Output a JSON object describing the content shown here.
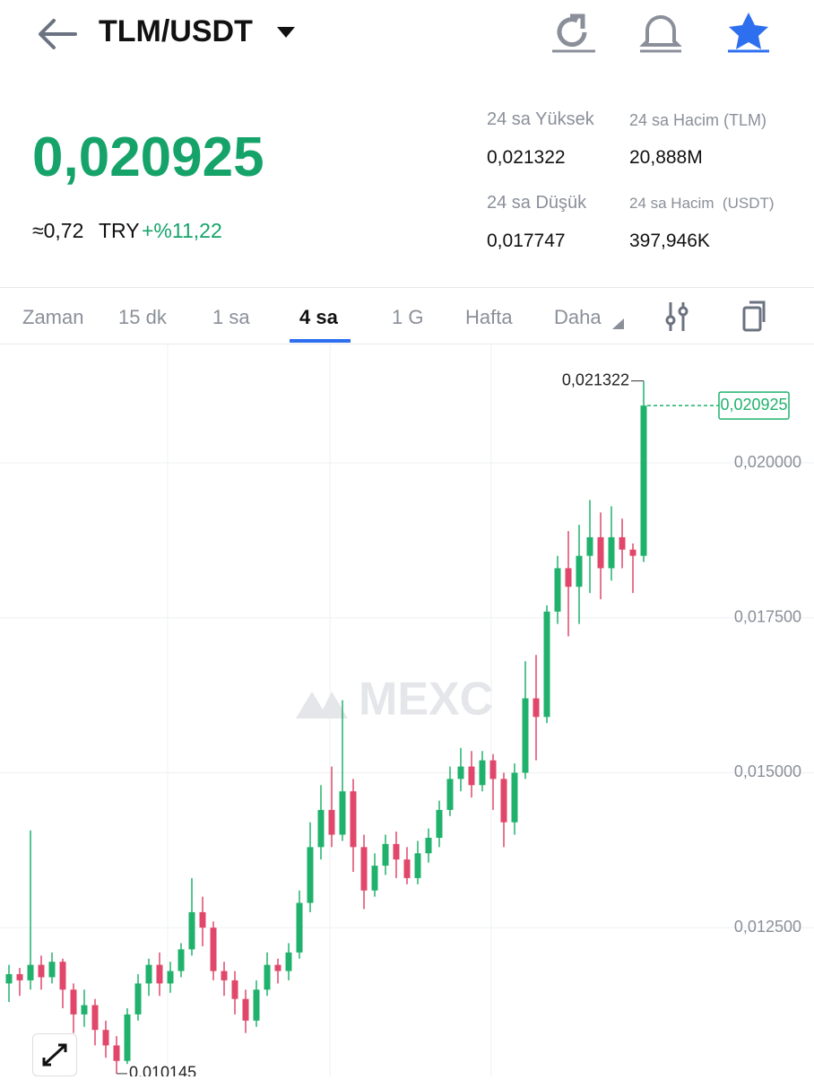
{
  "header": {
    "pair": "TLM/USDT"
  },
  "price": {
    "last": "0,020925",
    "fiat": "≈0,72",
    "currency": "TRY",
    "change": "+%11,22"
  },
  "stats": [
    {
      "label": "24 sa Yüksek",
      "value": "0,021322"
    },
    {
      "label": "24 sa Hacim (TLM)",
      "value": "20,888M"
    },
    {
      "label": "24 sa Düşük",
      "value": "0,017747"
    },
    {
      "label": "24 sa Hacim  (USDT)",
      "value": "397,946K"
    }
  ],
  "tabs": [
    "Zaman",
    "15 dk",
    "1 sa",
    "4 sa",
    "1 G",
    "Hafta",
    "Daha"
  ],
  "watermark": "MEXC",
  "chart_data": {
    "type": "candlestick",
    "up_color": "#20b26c",
    "down_color": "#e0476a",
    "ylim": [
      0.0101,
      0.021925
    ],
    "yticks": [
      {
        "value": 0.0125,
        "label": "0,012500"
      },
      {
        "value": 0.015,
        "label": "0,015000"
      },
      {
        "value": 0.0175,
        "label": "0,017500"
      },
      {
        "value": 0.02,
        "label": "0,020000"
      }
    ],
    "grid": true,
    "high_marker": {
      "value": 0.021322,
      "label": "0,021322"
    },
    "low_marker": {
      "value": 0.010145,
      "label": "0,010145"
    },
    "last_marker": {
      "value": 0.020925,
      "label": "0,020925"
    },
    "open": [
      0.0116,
      0.01175,
      0.01165,
      0.0119,
      0.0117,
      0.01195,
      0.0115,
      0.0111,
      0.01125,
      0.01085,
      0.0106,
      0.01035,
      0.0111,
      0.0116,
      0.0119,
      0.0116,
      0.0118,
      0.01215,
      0.01275,
      0.0125,
      0.0118,
      0.01165,
      0.01135,
      0.011,
      0.0115,
      0.0119,
      0.0118,
      0.0121,
      0.0129,
      0.0138,
      0.0144,
      0.014,
      0.0147,
      0.0138,
      0.0131,
      0.0135,
      0.01385,
      0.0136,
      0.0133,
      0.0137,
      0.01395,
      0.0144,
      0.0149,
      0.0151,
      0.0148,
      0.0152,
      0.0149,
      0.0142,
      0.015,
      0.0162,
      0.0159,
      0.0176,
      0.0183,
      0.018,
      0.0185,
      0.0188,
      0.0183,
      0.0188,
      0.0186,
      0.0185
    ],
    "high": [
      0.0119,
      0.01185,
      0.01407,
      0.01205,
      0.0121,
      0.012,
      0.0116,
      0.0115,
      0.01135,
      0.011,
      0.01075,
      0.0112,
      0.01175,
      0.012,
      0.0121,
      0.01195,
      0.01225,
      0.0133,
      0.013,
      0.0126,
      0.01195,
      0.0118,
      0.0115,
      0.01165,
      0.0121,
      0.012,
      0.01225,
      0.0131,
      0.0142,
      0.0148,
      0.0151,
      0.01617,
      0.0149,
      0.014,
      0.0137,
      0.014,
      0.01405,
      0.0138,
      0.0139,
      0.0141,
      0.01455,
      0.0151,
      0.0154,
      0.01535,
      0.01535,
      0.0153,
      0.015,
      0.01515,
      0.0168,
      0.0169,
      0.0177,
      0.0185,
      0.0189,
      0.019,
      0.0194,
      0.0192,
      0.0193,
      0.0191,
      0.0187,
      0.021322
    ],
    "low": [
      0.0113,
      0.0114,
      0.0115,
      0.0115,
      0.0116,
      0.0112,
      0.0108,
      0.0109,
      0.0106,
      0.0104,
      0.010145,
      0.0103,
      0.011,
      0.0114,
      0.0114,
      0.01145,
      0.0117,
      0.01205,
      0.0122,
      0.01165,
      0.0114,
      0.0111,
      0.0108,
      0.0109,
      0.0114,
      0.0116,
      0.01165,
      0.012,
      0.01275,
      0.0136,
      0.0138,
      0.0139,
      0.0134,
      0.0128,
      0.013,
      0.01335,
      0.0133,
      0.0132,
      0.0132,
      0.01355,
      0.0138,
      0.0143,
      0.0147,
      0.0146,
      0.0147,
      0.0144,
      0.0138,
      0.014,
      0.0149,
      0.0152,
      0.0158,
      0.0174,
      0.0172,
      0.0174,
      0.0179,
      0.0178,
      0.0181,
      0.0183,
      0.0179,
      0.0184
    ],
    "close": [
      0.01175,
      0.01165,
      0.0119,
      0.0117,
      0.01195,
      0.0115,
      0.0111,
      0.01125,
      0.01085,
      0.0106,
      0.01035,
      0.0111,
      0.0116,
      0.0119,
      0.0116,
      0.0118,
      0.01215,
      0.01275,
      0.0125,
      0.0118,
      0.01165,
      0.01135,
      0.011,
      0.0115,
      0.0119,
      0.0118,
      0.0121,
      0.0129,
      0.0138,
      0.0144,
      0.014,
      0.0147,
      0.0138,
      0.0131,
      0.0135,
      0.01385,
      0.0136,
      0.0133,
      0.0137,
      0.01395,
      0.0144,
      0.0149,
      0.0151,
      0.0148,
      0.0152,
      0.0149,
      0.0142,
      0.015,
      0.0162,
      0.0159,
      0.0176,
      0.0183,
      0.018,
      0.0185,
      0.0188,
      0.0183,
      0.0188,
      0.0186,
      0.0185,
      0.020925
    ]
  }
}
